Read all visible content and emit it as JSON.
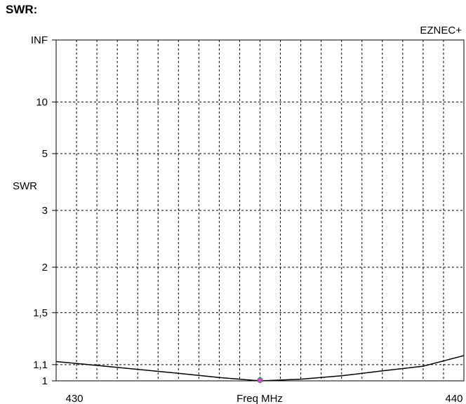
{
  "heading": "SWR:",
  "chart_data": {
    "type": "line",
    "brand": "EZNEC+",
    "title": "",
    "xlabel": "Freq MHz",
    "ylabel": "SWR",
    "xlim": [
      430,
      440
    ],
    "x_tick_labels": [
      "430",
      "440"
    ],
    "y_scale": "reflection-coefficient (SWR chart scale)",
    "y_ticks": [
      {
        "value": 1,
        "label": "1"
      },
      {
        "value": 1.1,
        "label": "1,1"
      },
      {
        "value": 1.5,
        "label": "1,5"
      },
      {
        "value": 2,
        "label": "2"
      },
      {
        "value": 3,
        "label": "3"
      },
      {
        "value": 5,
        "label": "5"
      },
      {
        "value": 10,
        "label": "10"
      },
      {
        "value": "INF",
        "label": "INF"
      }
    ],
    "grid": true,
    "series": [
      {
        "x": [
          430,
          431,
          432,
          433,
          434,
          435,
          436,
          437,
          438,
          439,
          440
        ],
        "y": [
          1.12,
          1.095,
          1.07,
          1.045,
          1.02,
          1.0,
          1.01,
          1.03,
          1.06,
          1.09,
          1.16
        ],
        "color": "#000000"
      }
    ],
    "marker": {
      "x": 435,
      "y": 1.0,
      "color": "#e040e0"
    }
  }
}
